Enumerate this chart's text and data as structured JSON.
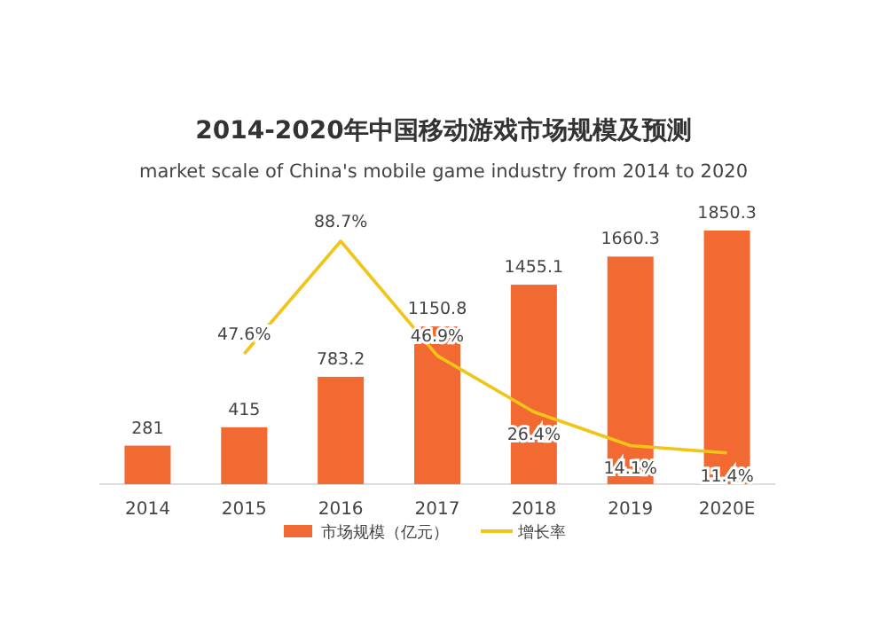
{
  "chart_data": {
    "type": "bar",
    "title": "2014-2020年中国移动游戏市场规模及预测",
    "subtitle": "market scale of China's mobile game industry from 2014 to 2020",
    "categories": [
      "2014",
      "2015",
      "2016",
      "2017",
      "2018",
      "2019",
      "2020E"
    ],
    "series": [
      {
        "name": "市场规模（亿元）",
        "color": "#f26a32",
        "values": [
          281,
          415,
          783.2,
          1150.8,
          1455.1,
          1660.3,
          1850.3
        ],
        "value_labels": [
          "281",
          "415",
          "783.2",
          "1150.8",
          "1455.1",
          "1660.3",
          "1850.3"
        ]
      },
      {
        "name": "增长率",
        "type": "line",
        "axis": "y2",
        "color": "#f2c419",
        "values": [
          null,
          47.6,
          88.7,
          46.9,
          26.4,
          14.1,
          11.4
        ],
        "value_labels": [
          null,
          "47.6%",
          "88.7%",
          "46.9%",
          "26.4%",
          "14.1%",
          "11.4%"
        ]
      }
    ],
    "relative": false,
    "legend": "bottom",
    "marker": "none",
    "line_style": "solid"
  }
}
